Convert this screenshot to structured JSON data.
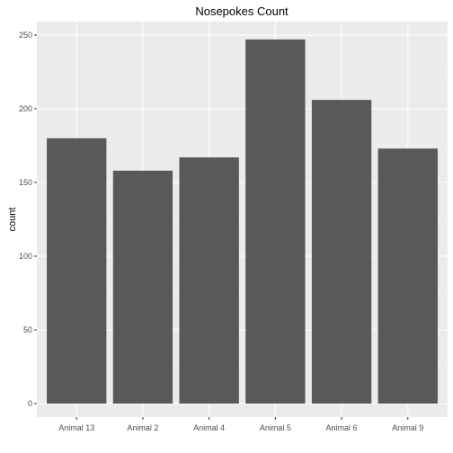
{
  "chart_data": {
    "type": "bar",
    "title": "Nosepokes Count",
    "xlabel": "",
    "ylabel": "count",
    "categories": [
      "Animal 13",
      "Animal 2",
      "Animal 4",
      "Animal 5",
      "Animal 6",
      "Animal 9"
    ],
    "values": [
      180,
      158,
      167,
      247,
      206,
      173
    ],
    "ylim": [
      0,
      262
    ],
    "yticks": [
      0,
      50,
      100,
      150,
      200,
      250
    ],
    "grid": true,
    "legend": "none",
    "colors": {
      "bar": "#595959",
      "panel": "#ebebeb",
      "grid_major": "#ffffff",
      "tick_label": "#4d4d4d",
      "tick_mark": "#333333"
    }
  }
}
